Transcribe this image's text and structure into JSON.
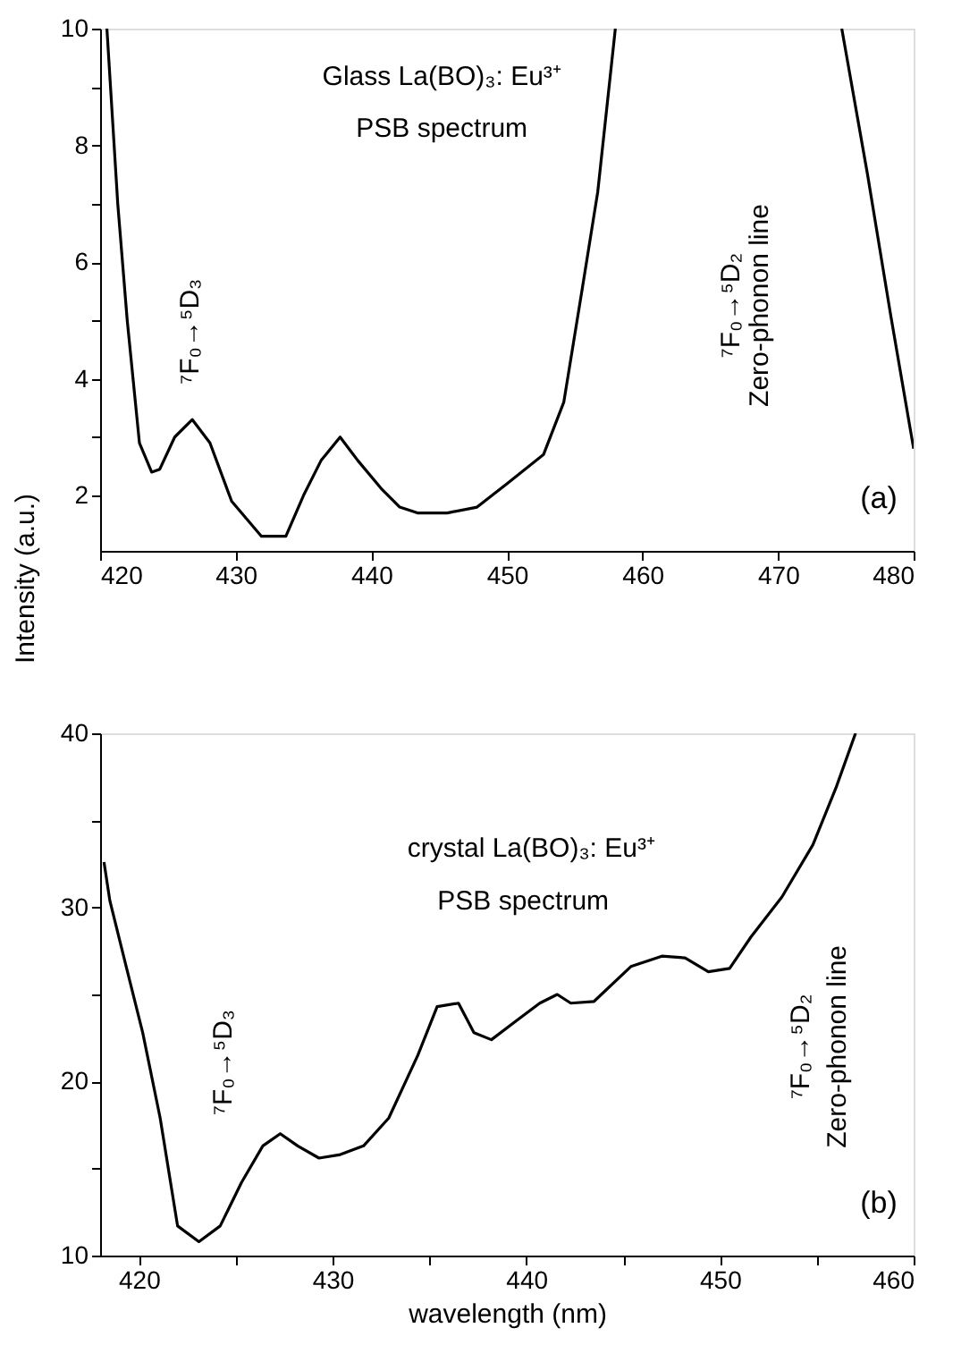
{
  "chart_data": [
    {
      "type": "line",
      "ylabel": "Intensity (a.u.)",
      "x": [
        420.5,
        421.3,
        422.0,
        422.9,
        423.8,
        424.4,
        425.5,
        426.8,
        428.1,
        429.7,
        431.9,
        433.7,
        435.0,
        436.3,
        437.7,
        439.0,
        440.8,
        442.1,
        443.4,
        445.6,
        447.8,
        450.0,
        452.7,
        454.2,
        455.6,
        456.7,
        458.0,
        466.0,
        474.7,
        476.6,
        478.3,
        480.0
      ],
      "series": [
        {
          "color": "#000000",
          "values": [
            10,
            7.0,
            5.0,
            2.9,
            2.4,
            2.45,
            3.0,
            3.3,
            2.9,
            1.9,
            1.3,
            1.3,
            2.0,
            2.6,
            3.0,
            2.6,
            2.1,
            1.8,
            1.7,
            1.7,
            1.8,
            2.2,
            2.7,
            3.6,
            5.6,
            7.2,
            10,
            null,
            10,
            7.5,
            5.1,
            2.8
          ]
        }
      ],
      "xlim": [
        420,
        480
      ],
      "ylim": [
        1.05,
        10
      ],
      "xticks": [
        420,
        430,
        440,
        450,
        460,
        470,
        480
      ],
      "yticks": [
        2,
        {
          "value": 3,
          "label": null
        },
        4,
        {
          "value": 5,
          "label": null
        },
        6,
        {
          "value": 7,
          "label": null
        },
        8,
        {
          "value": 9,
          "label": null
        },
        10
      ],
      "grid": false,
      "marker": "none",
      "line_style": "solid",
      "annotations": [
        "Glass La(BO)₃: Eu³⁺",
        "PSB spectrum",
        "(a)",
        "⁷F₀→⁵D₃",
        "⁷F₀→⁵D₂",
        "Zero-phonon line"
      ]
    },
    {
      "type": "line",
      "xlabel": "wavelength (nm)",
      "x": [
        418.2,
        418.5,
        419.3,
        420.2,
        421.1,
        422.0,
        423.1,
        424.2,
        425.3,
        426.4,
        427.3,
        428.2,
        429.3,
        430.4,
        431.6,
        432.9,
        434.4,
        435.4,
        436.5,
        437.3,
        438.2,
        439.5,
        440.7,
        441.6,
        442.3,
        443.5,
        445.4,
        447.0,
        448.2,
        449.4,
        450.5,
        451.6,
        453.2,
        454.8,
        456.0,
        457.0
      ],
      "series": [
        {
          "color": "#000000",
          "values": [
            32.6,
            30.4,
            26.8,
            22.8,
            17.9,
            11.7,
            10.8,
            11.7,
            14.2,
            16.3,
            17.0,
            16.3,
            15.6,
            15.8,
            16.3,
            17.9,
            21.5,
            24.3,
            24.5,
            22.8,
            22.4,
            23.5,
            24.5,
            25.0,
            24.5,
            24.6,
            26.6,
            27.2,
            27.1,
            26.3,
            26.5,
            28.3,
            30.6,
            33.6,
            36.9,
            40
          ]
        }
      ],
      "xlim": [
        418,
        460
      ],
      "ylim": [
        10,
        40
      ],
      "xticks": [
        420,
        430,
        440,
        450,
        460,
        {
          "value": 425,
          "label": null
        },
        {
          "value": 435,
          "label": null
        },
        {
          "value": 445,
          "label": null
        },
        {
          "value": 455,
          "label": null
        }
      ],
      "yticks": [
        10,
        20,
        30,
        40,
        {
          "value": 15,
          "label": null
        },
        {
          "value": 25,
          "label": null
        },
        {
          "value": 35,
          "label": null
        }
      ],
      "grid": false,
      "marker": "none",
      "line_style": "solid",
      "annotations": [
        "crystal La(BO)₃: Eu³⁺",
        "PSB spectrum",
        "(b)",
        "⁷F₀→⁵D₃",
        "⁷F₀→⁵D₂",
        "Zero-phonon line"
      ]
    }
  ]
}
